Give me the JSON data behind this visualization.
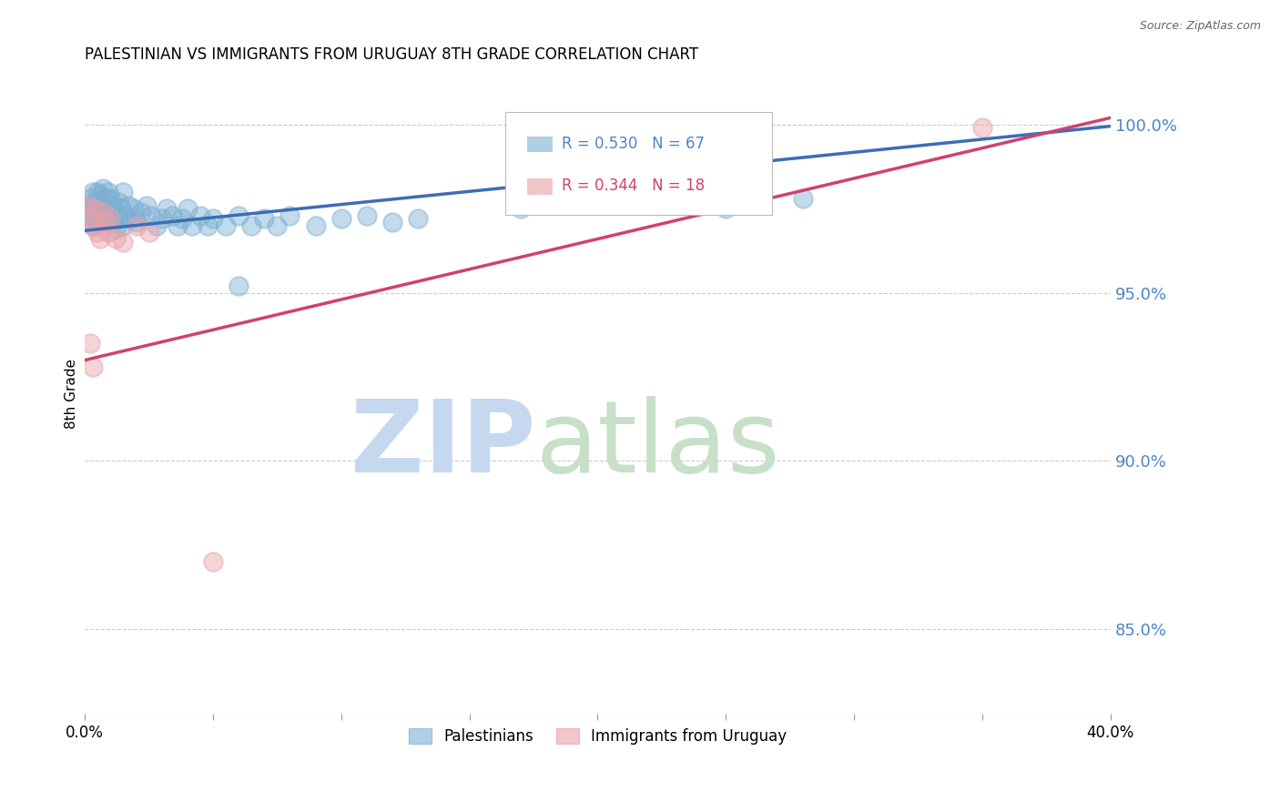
{
  "title": "PALESTINIAN VS IMMIGRANTS FROM URUGUAY 8TH GRADE CORRELATION CHART",
  "source": "Source: ZipAtlas.com",
  "ylabel": "8th Grade",
  "y_tick_labels": [
    "85.0%",
    "90.0%",
    "95.0%",
    "100.0%"
  ],
  "y_tick_values": [
    0.85,
    0.9,
    0.95,
    1.0
  ],
  "xlim": [
    0.0,
    0.4
  ],
  "ylim": [
    0.825,
    1.015
  ],
  "blue_R": 0.53,
  "blue_N": 67,
  "pink_R": 0.344,
  "pink_N": 18,
  "blue_color": "#7bafd4",
  "pink_color": "#e8a0a8",
  "blue_line_color": "#3c6eb4",
  "pink_line_color": "#d04070",
  "legend_label_blue": "Palestinians",
  "legend_label_pink": "Immigrants from Uruguay",
  "background_color": "#ffffff",
  "grid_color": "#cccccc",
  "right_axis_color": "#4a86c8",
  "blue_line_x0": 0.0,
  "blue_line_y0": 0.9685,
  "blue_line_x1": 0.4,
  "blue_line_y1": 0.9995,
  "pink_line_x0": 0.0,
  "pink_line_y0": 0.93,
  "pink_line_x1": 0.4,
  "pink_line_y1": 1.002,
  "blue_x": [
    0.001,
    0.001,
    0.002,
    0.002,
    0.003,
    0.003,
    0.003,
    0.004,
    0.004,
    0.005,
    0.005,
    0.005,
    0.006,
    0.006,
    0.007,
    0.007,
    0.007,
    0.008,
    0.008,
    0.009,
    0.009,
    0.01,
    0.01,
    0.011,
    0.011,
    0.012,
    0.012,
    0.013,
    0.013,
    0.014,
    0.015,
    0.015,
    0.016,
    0.017,
    0.018,
    0.019,
    0.02,
    0.022,
    0.024,
    0.026,
    0.028,
    0.03,
    0.032,
    0.034,
    0.036,
    0.038,
    0.04,
    0.042,
    0.045,
    0.048,
    0.05,
    0.055,
    0.06,
    0.065,
    0.07,
    0.075,
    0.08,
    0.09,
    0.1,
    0.11,
    0.12,
    0.13,
    0.17,
    0.21,
    0.25,
    0.28,
    0.06
  ],
  "blue_y": [
    0.976,
    0.972,
    0.978,
    0.974,
    0.98,
    0.975,
    0.97,
    0.977,
    0.973,
    0.98,
    0.975,
    0.971,
    0.979,
    0.974,
    0.981,
    0.976,
    0.971,
    0.978,
    0.973,
    0.98,
    0.975,
    0.978,
    0.973,
    0.976,
    0.971,
    0.974,
    0.969,
    0.977,
    0.972,
    0.975,
    0.98,
    0.97,
    0.973,
    0.976,
    0.972,
    0.975,
    0.971,
    0.974,
    0.976,
    0.973,
    0.97,
    0.972,
    0.975,
    0.973,
    0.97,
    0.972,
    0.975,
    0.97,
    0.973,
    0.97,
    0.972,
    0.97,
    0.973,
    0.97,
    0.972,
    0.97,
    0.973,
    0.97,
    0.972,
    0.973,
    0.971,
    0.972,
    0.975,
    0.98,
    0.975,
    0.978,
    0.952
  ],
  "pink_x": [
    0.001,
    0.002,
    0.003,
    0.004,
    0.005,
    0.006,
    0.007,
    0.008,
    0.009,
    0.01,
    0.012,
    0.015,
    0.02,
    0.025,
    0.002,
    0.003,
    0.05,
    0.35
  ],
  "pink_y": [
    0.976,
    0.972,
    0.97,
    0.975,
    0.968,
    0.966,
    0.974,
    0.971,
    0.968,
    0.972,
    0.966,
    0.965,
    0.97,
    0.968,
    0.935,
    0.928,
    0.87,
    0.999
  ]
}
